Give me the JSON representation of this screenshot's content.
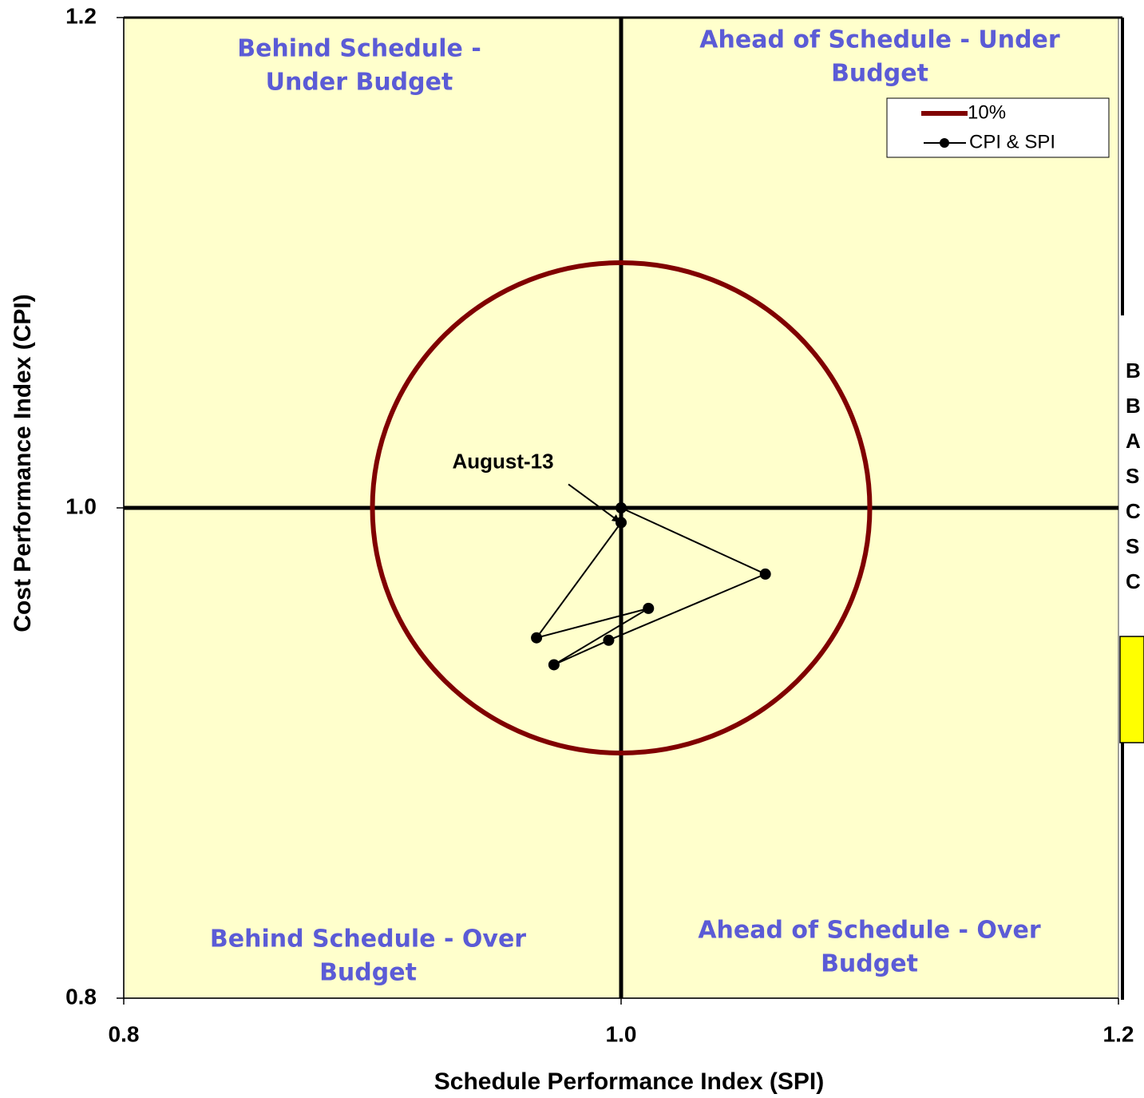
{
  "chart_data": {
    "type": "scatter",
    "xlabel": "Schedule Performance Index (SPI)",
    "ylabel": "Cost Performance Index (CPI)",
    "xlim": [
      0.8,
      1.2
    ],
    "ylim": [
      0.8,
      1.2
    ],
    "xticks": [
      0.8,
      {
        "value": 1,
        "label": "1.0"
      },
      1.2
    ],
    "yticks": [
      0.8,
      {
        "value": 1,
        "label": "1.0"
      },
      1.2
    ],
    "reference_lines": {
      "x": 1,
      "y": 1
    },
    "circle": {
      "name": "10%",
      "color": "#800000",
      "center": [
        1,
        1
      ],
      "radius": 0.1
    },
    "series": [
      {
        "name": "CPI & SPI",
        "color": "#000000",
        "x": [
          1.0,
          1.058,
          0.995,
          0.973,
          1.011,
          0.966,
          1.0
        ],
        "values": [
          1.0,
          0.973,
          0.946,
          0.936,
          0.959,
          0.947,
          0.994
        ]
      }
    ],
    "annotations": [
      {
        "text": "August-13",
        "point": 6
      }
    ],
    "quadrant_labels": [
      [
        "Behind Schedule -",
        "Under Budget"
      ],
      [
        "Ahead of Schedule - Under",
        "Budget"
      ],
      [
        "Behind Schedule - Over",
        "Budget"
      ],
      [
        "Ahead of Schedule - Over",
        "Budget"
      ]
    ],
    "side_panel_fragments": [
      "B",
      "B",
      "A",
      "S",
      "C",
      "S",
      "C"
    ],
    "legend": "upper right",
    "background": "#ffffcc"
  }
}
